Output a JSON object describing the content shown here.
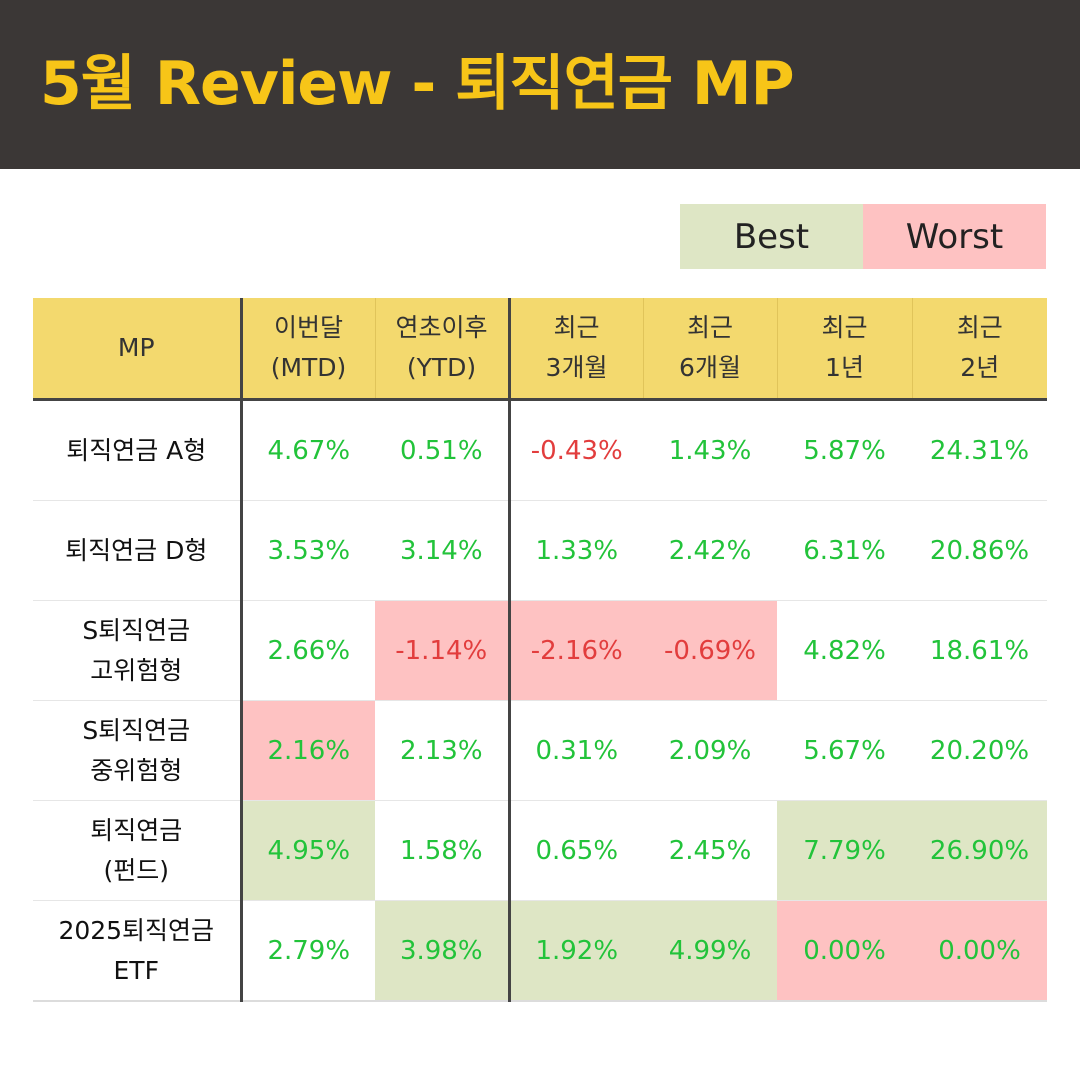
{
  "title": "5월 Review - 퇴직연금 MP",
  "legend": {
    "best": "Best",
    "worst": "Worst"
  },
  "columns": [
    {
      "line1": "MP",
      "line2": ""
    },
    {
      "line1": "이번달",
      "line2": "(MTD)"
    },
    {
      "line1": "연초이후",
      "line2": "(YTD)"
    },
    {
      "line1": "최근",
      "line2": "3개월"
    },
    {
      "line1": "최근",
      "line2": "6개월"
    },
    {
      "line1": "최근",
      "line2": "1년"
    },
    {
      "line1": "최근",
      "line2": "2년"
    }
  ],
  "rows": [
    {
      "name1": "퇴직연금 A형",
      "name2": "",
      "cells": [
        {
          "v": "4.67%",
          "h": ""
        },
        {
          "v": "0.51%",
          "h": ""
        },
        {
          "v": "-0.43%",
          "h": ""
        },
        {
          "v": "1.43%",
          "h": ""
        },
        {
          "v": "5.87%",
          "h": ""
        },
        {
          "v": "24.31%",
          "h": ""
        }
      ]
    },
    {
      "name1": "퇴직연금 D형",
      "name2": "",
      "cells": [
        {
          "v": "3.53%",
          "h": ""
        },
        {
          "v": "3.14%",
          "h": ""
        },
        {
          "v": "1.33%",
          "h": ""
        },
        {
          "v": "2.42%",
          "h": ""
        },
        {
          "v": "6.31%",
          "h": ""
        },
        {
          "v": "20.86%",
          "h": ""
        }
      ]
    },
    {
      "name1": "S퇴직연금",
      "name2": "고위험형",
      "cells": [
        {
          "v": "2.66%",
          "h": ""
        },
        {
          "v": "-1.14%",
          "h": "worst"
        },
        {
          "v": "-2.16%",
          "h": "worst"
        },
        {
          "v": "-0.69%",
          "h": "worst"
        },
        {
          "v": "4.82%",
          "h": ""
        },
        {
          "v": "18.61%",
          "h": ""
        }
      ]
    },
    {
      "name1": "S퇴직연금",
      "name2": "중위험형",
      "cells": [
        {
          "v": "2.16%",
          "h": "worst"
        },
        {
          "v": "2.13%",
          "h": ""
        },
        {
          "v": "0.31%",
          "h": ""
        },
        {
          "v": "2.09%",
          "h": ""
        },
        {
          "v": "5.67%",
          "h": ""
        },
        {
          "v": "20.20%",
          "h": ""
        }
      ]
    },
    {
      "name1": "퇴직연금",
      "name2": "(펀드)",
      "cells": [
        {
          "v": "4.95%",
          "h": "best"
        },
        {
          "v": "1.58%",
          "h": ""
        },
        {
          "v": "0.65%",
          "h": ""
        },
        {
          "v": "2.45%",
          "h": ""
        },
        {
          "v": "7.79%",
          "h": "best"
        },
        {
          "v": "26.90%",
          "h": "best"
        }
      ]
    },
    {
      "name1": "2025퇴직연금",
      "name2": "ETF",
      "cells": [
        {
          "v": "2.79%",
          "h": ""
        },
        {
          "v": "3.98%",
          "h": "best"
        },
        {
          "v": "1.92%",
          "h": "best"
        },
        {
          "v": "4.99%",
          "h": "best"
        },
        {
          "v": "0.00%",
          "h": "worst"
        },
        {
          "v": "0.00%",
          "h": "worst"
        }
      ]
    }
  ],
  "colors": {
    "positive": "#22c33a",
    "negative": "#e23d3d",
    "best": "#dee6c5",
    "worst": "#fec2c2",
    "header": "#f3d96e",
    "title": "#f7c518"
  }
}
